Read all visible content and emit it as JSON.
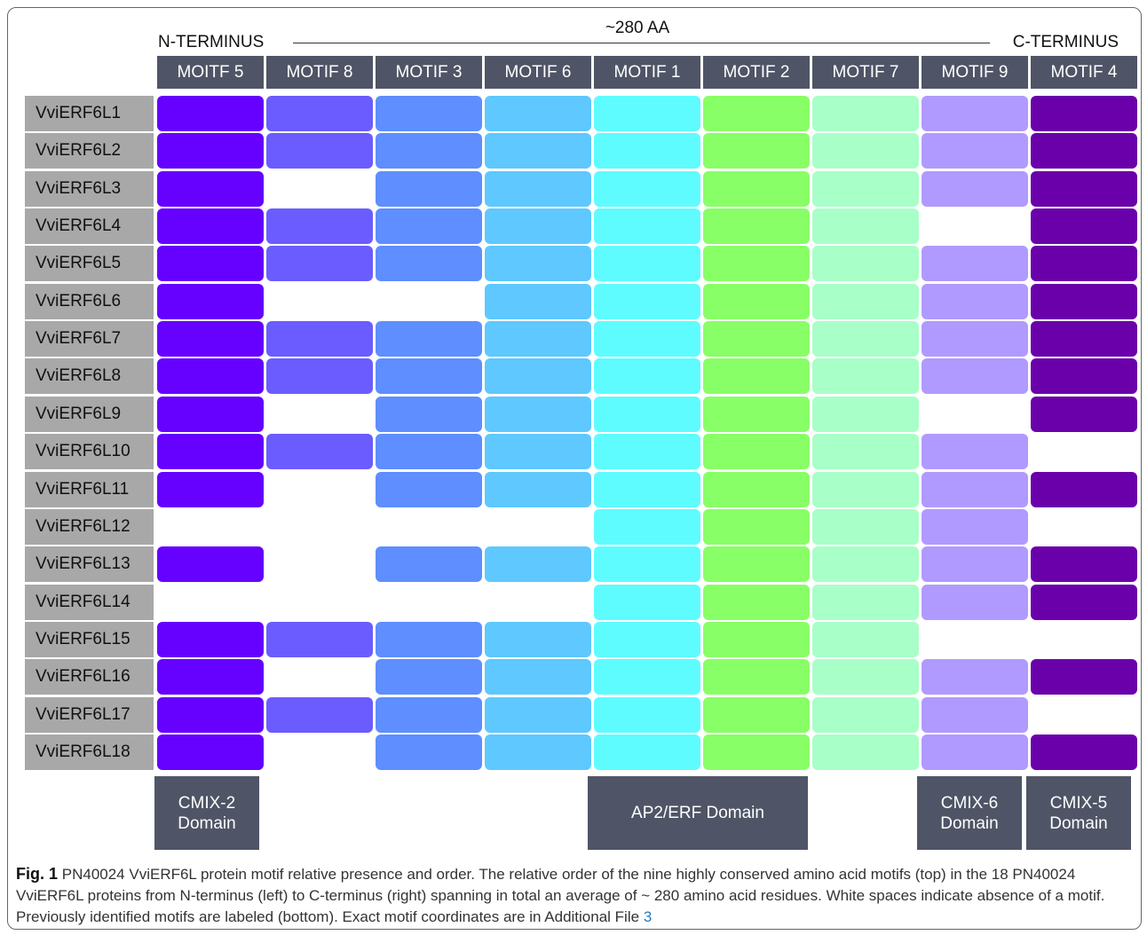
{
  "header": {
    "n_terminus": "N-TERMINUS",
    "length": "~280 AA",
    "c_terminus": "C-TERMINUS"
  },
  "motifs": [
    {
      "label": "MOITF 5",
      "color": "#6600ff"
    },
    {
      "label": "MOTIF 8",
      "color": "#6a5cff"
    },
    {
      "label": "MOTIF 3",
      "color": "#5e8eff"
    },
    {
      "label": "MOTIF 6",
      "color": "#5ec8ff"
    },
    {
      "label": "MOTIF 1",
      "color": "#5efcff"
    },
    {
      "label": "MOTIF 2",
      "color": "#88ff66"
    },
    {
      "label": "MOTIF 7",
      "color": "#a8ffc8"
    },
    {
      "label": "MOTIF 9",
      "color": "#b09aff"
    },
    {
      "label": "MOTIF 4",
      "color": "#6a00aa"
    }
  ],
  "proteins": [
    {
      "name": "VviERF6L1",
      "present": [
        true,
        true,
        true,
        true,
        true,
        true,
        true,
        true,
        true
      ]
    },
    {
      "name": "VviERF6L2",
      "present": [
        true,
        true,
        true,
        true,
        true,
        true,
        true,
        true,
        true
      ]
    },
    {
      "name": "VviERF6L3",
      "present": [
        true,
        false,
        true,
        true,
        true,
        true,
        true,
        true,
        true
      ]
    },
    {
      "name": "VviERF6L4",
      "present": [
        true,
        true,
        true,
        true,
        true,
        true,
        true,
        false,
        true
      ]
    },
    {
      "name": "VviERF6L5",
      "present": [
        true,
        true,
        true,
        true,
        true,
        true,
        true,
        true,
        true
      ]
    },
    {
      "name": "VviERF6L6",
      "present": [
        true,
        false,
        false,
        true,
        true,
        true,
        true,
        true,
        true
      ]
    },
    {
      "name": "VviERF6L7",
      "present": [
        true,
        true,
        true,
        true,
        true,
        true,
        true,
        true,
        true
      ]
    },
    {
      "name": "VviERF6L8",
      "present": [
        true,
        true,
        true,
        true,
        true,
        true,
        true,
        true,
        true
      ]
    },
    {
      "name": "VviERF6L9",
      "present": [
        true,
        false,
        true,
        true,
        true,
        true,
        true,
        false,
        true
      ]
    },
    {
      "name": "VviERF6L10",
      "present": [
        true,
        true,
        true,
        true,
        true,
        true,
        true,
        true,
        false
      ]
    },
    {
      "name": "VviERF6L11",
      "present": [
        true,
        false,
        true,
        true,
        true,
        true,
        true,
        true,
        true
      ]
    },
    {
      "name": "VviERF6L12",
      "present": [
        false,
        false,
        false,
        false,
        true,
        true,
        true,
        true,
        false
      ]
    },
    {
      "name": "VviERF6L13",
      "present": [
        true,
        false,
        true,
        true,
        true,
        true,
        true,
        true,
        true
      ]
    },
    {
      "name": "VviERF6L14",
      "present": [
        false,
        false,
        false,
        false,
        true,
        true,
        true,
        true,
        true
      ]
    },
    {
      "name": "VviERF6L15",
      "present": [
        true,
        true,
        true,
        true,
        true,
        true,
        true,
        false,
        false
      ]
    },
    {
      "name": "VviERF6L16",
      "present": [
        true,
        false,
        true,
        true,
        true,
        true,
        true,
        true,
        true
      ]
    },
    {
      "name": "VviERF6L17",
      "present": [
        true,
        true,
        true,
        true,
        true,
        true,
        true,
        true,
        false
      ]
    },
    {
      "name": "VviERF6L18",
      "present": [
        true,
        false,
        true,
        true,
        true,
        true,
        true,
        true,
        true
      ]
    }
  ],
  "domains": [
    {
      "lines": [
        "CMIX-2",
        "Domain"
      ]
    },
    {
      "lines": [
        "AP2/ERF Domain"
      ]
    },
    {
      "lines": [
        "CMIX-6",
        "Domain"
      ]
    },
    {
      "lines": [
        "CMIX-5",
        "Domain"
      ]
    }
  ],
  "caption": {
    "label": "Fig. 1",
    "text": "PN40024 VviERF6L protein motif relative presence and order. The relative order of the nine highly conserved amino acid motifs (top) in the 18 PN40024 VviERF6L proteins from N-terminus (left) to C-terminus (right) spanning in total an average of ~ 280 amino acid residues. White spaces indicate absence of a motif. Previously identified motifs are labeled (bottom). Exact motif coordinates are in Additional File",
    "link": "3"
  }
}
